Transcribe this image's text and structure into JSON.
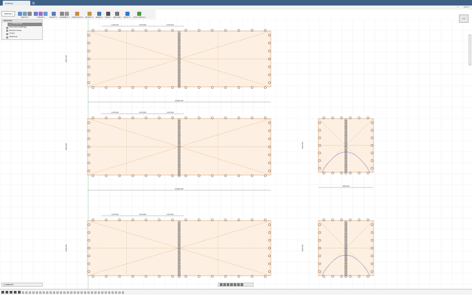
{
  "titlebar": {
    "tab_title": "Untitled",
    "new_tab": "+"
  },
  "toolbar": {
    "workspace": "DESIGN ▾",
    "groups": [
      {
        "label": "SKETCH ▾",
        "colors": [
          "#5a8fd0",
          "#7aa0c0",
          "#888"
        ]
      },
      {
        "label": "CREATE ▾",
        "colors": [
          "#6a7fd0",
          "#a06ad0",
          "#6a9ad0"
        ]
      },
      {
        "label": "MODIFY ▾",
        "colors": [
          "#5a7fc0"
        ]
      },
      {
        "label": "ASSEMBLE ▾",
        "colors": [
          "#888",
          "#999"
        ]
      },
      {
        "label": "CONSTRUCT ▾",
        "colors": [
          "#d08a3a"
        ]
      },
      {
        "label": "INSPECT ▾",
        "colors": [
          "#c09a40"
        ]
      },
      {
        "label": "INSERT ▾",
        "colors": [
          "#4a7ab0"
        ]
      },
      {
        "label": "MAKE ▾",
        "colors": [
          "#555"
        ]
      },
      {
        "label": "ADD-INS ▾",
        "colors": [
          "#777"
        ]
      },
      {
        "label": "SELECT ▾",
        "colors": [
          "#2a7ad0"
        ]
      },
      {
        "label": "STOP SKETCH ▾",
        "colors": [
          "#4a9a4a"
        ]
      }
    ]
  },
  "user": {
    "name": "User ▾",
    "help": "?"
  },
  "browser": {
    "title": "BROWSER",
    "items": [
      {
        "label": "component",
        "root": true
      },
      {
        "label": "Document Settings"
      },
      {
        "label": "Named Views"
      },
      {
        "label": "Origin"
      },
      {
        "label": "Sketches"
      }
    ]
  },
  "viewcube": {
    "label": "TOP"
  },
  "comments": {
    "label": "COMMENTS"
  },
  "sketch": {
    "fill": "#fdf0e2",
    "outline": "#e0a070",
    "dim_color": "#444",
    "dims": {
      "segment": "125.00",
      "length": "1000.00",
      "width": "300.00",
      "small_width": "300.00"
    }
  }
}
